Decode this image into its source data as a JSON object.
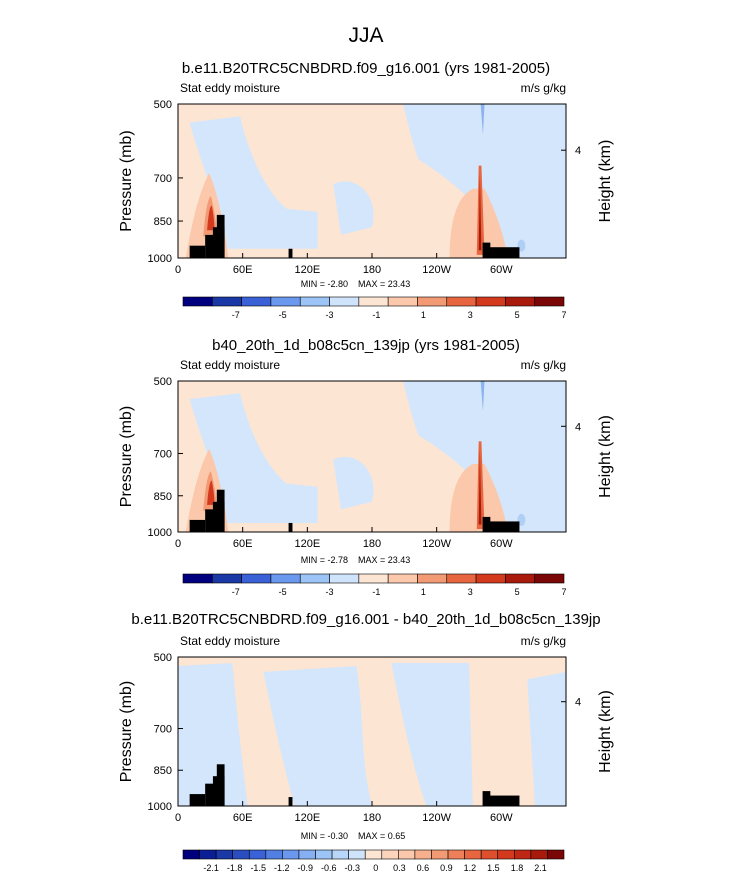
{
  "figure": {
    "title": "JJA"
  },
  "chart_data": [
    {
      "type": "heatmap",
      "title": "b.e11.B20TRC5CNBDRD.f09_g16.001 (yrs 1981-2005)",
      "left_label": "Stat eddy moisture",
      "right_label": "m/s g/kg",
      "xlabel": "",
      "ylabel": "Pressure (mb)",
      "y2label": "Height (km)",
      "x_ticks": [
        "0",
        "60E",
        "120E",
        "180",
        "120W",
        "60W"
      ],
      "y_ticks": [
        "500",
        "700",
        "850",
        "1000"
      ],
      "y2_ticks": [
        "4"
      ],
      "min_text": "MIN =  -2.80",
      "max_text": "MAX =  23.43",
      "min": -2.8,
      "max": 23.43,
      "colorbar_labels": [
        "-7",
        "-5",
        "-3",
        "-1",
        "1",
        "3",
        "5",
        "7"
      ],
      "colorbar_colors": [
        "#00007f",
        "#1a38a6",
        "#3a62d6",
        "#6a98ee",
        "#9dc4f6",
        "#cfe3fb",
        "#fde5d3",
        "#fbc8ab",
        "#f29a74",
        "#e8663f",
        "#d33a1d",
        "#a81a0c",
        "#7a0605"
      ]
    },
    {
      "type": "heatmap",
      "title": "b40_20th_1d_b08c5cn_139jp (yrs 1981-2005)",
      "left_label": "Stat eddy moisture",
      "right_label": "m/s g/kg",
      "xlabel": "",
      "ylabel": "Pressure (mb)",
      "y2label": "Height (km)",
      "x_ticks": [
        "0",
        "60E",
        "120E",
        "180",
        "120W",
        "60W"
      ],
      "y_ticks": [
        "500",
        "700",
        "850",
        "1000"
      ],
      "y2_ticks": [
        "4"
      ],
      "min_text": "MIN =  -2.78",
      "max_text": "MAX =  23.43",
      "min": -2.78,
      "max": 23.43,
      "colorbar_labels": [
        "-7",
        "-5",
        "-3",
        "-1",
        "1",
        "3",
        "5",
        "7"
      ],
      "colorbar_colors": [
        "#00007f",
        "#1a38a6",
        "#3a62d6",
        "#6a98ee",
        "#9dc4f6",
        "#cfe3fb",
        "#fde5d3",
        "#fbc8ab",
        "#f29a74",
        "#e8663f",
        "#d33a1d",
        "#a81a0c",
        "#7a0605"
      ]
    },
    {
      "type": "heatmap",
      "title": "b.e11.B20TRC5CNBDRD.f09_g16.001 - b40_20th_1d_b08c5cn_139jp",
      "left_label": "Stat eddy moisture",
      "right_label": "m/s g/kg",
      "xlabel": "",
      "ylabel": "Pressure (mb)",
      "y2label": "Height (km)",
      "x_ticks": [
        "0",
        "60E",
        "120E",
        "180",
        "120W",
        "60W"
      ],
      "y_ticks": [
        "500",
        "700",
        "850",
        "1000"
      ],
      "y2_ticks": [
        "4"
      ],
      "min_text": "MIN =  -0.30",
      "max_text": "MAX =  0.65",
      "min": -0.3,
      "max": 0.65,
      "colorbar_labels": [
        "-2.1",
        "-1.8",
        "-1.5",
        "-1.2",
        "-0.9",
        "-0.6",
        "-0.3",
        "0",
        "0.3",
        "0.6",
        "0.9",
        "1.2",
        "1.5",
        "1.8",
        "2.1"
      ],
      "colorbar_colors": [
        "#00007f",
        "#0c1e96",
        "#1a38a6",
        "#2a4ec0",
        "#3a62d6",
        "#5280e2",
        "#6a98ee",
        "#86b0f2",
        "#9dc4f6",
        "#b8d6f9",
        "#cfe3fb",
        "#fde5d3",
        "#fbd4bb",
        "#fbc8ab",
        "#f6b08e",
        "#f29a74",
        "#ed8058",
        "#e8663f",
        "#de4f2d",
        "#d33a1d",
        "#bf2814",
        "#a81a0c",
        "#7a0605"
      ]
    }
  ]
}
